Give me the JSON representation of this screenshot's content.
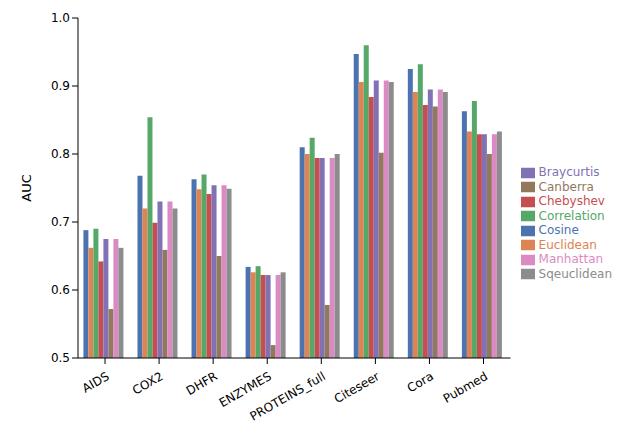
{
  "chart_data": {
    "type": "bar",
    "y_label": "AUC",
    "categories": [
      "AIDS",
      "COX2",
      "DHFR",
      "ENZYMES",
      "PROTEINS_full",
      "Citeseer",
      "Cora",
      "Pubmed"
    ],
    "series": [
      {
        "name": "Cosine",
        "color": "#4c72b0",
        "values": [
          0.688,
          0.768,
          0.763,
          0.634,
          0.81,
          0.947,
          0.925,
          0.863
        ]
      },
      {
        "name": "Euclidean",
        "color": "#dd8452",
        "values": [
          0.662,
          0.72,
          0.748,
          0.626,
          0.8,
          0.906,
          0.891,
          0.833
        ]
      },
      {
        "name": "Correlation",
        "color": "#55a868",
        "values": [
          0.69,
          0.854,
          0.77,
          0.635,
          0.824,
          0.96,
          0.932,
          0.878
        ]
      },
      {
        "name": "Chebyshev",
        "color": "#c44e52",
        "values": [
          0.642,
          0.699,
          0.741,
          0.622,
          0.794,
          0.884,
          0.872,
          0.829
        ]
      },
      {
        "name": "Braycurtis",
        "color": "#8172b3",
        "values": [
          0.675,
          0.73,
          0.754,
          0.622,
          0.794,
          0.908,
          0.895,
          0.829
        ]
      },
      {
        "name": "Canberra",
        "color": "#937860",
        "values": [
          0.572,
          0.659,
          0.65,
          0.519,
          0.578,
          0.802,
          0.87,
          0.8
        ]
      },
      {
        "name": "Manhattan",
        "color": "#da8bc3",
        "values": [
          0.675,
          0.73,
          0.754,
          0.622,
          0.794,
          0.908,
          0.895,
          0.829
        ]
      },
      {
        "name": "Sqeuclidean",
        "color": "#8c8c8c",
        "values": [
          0.662,
          0.72,
          0.749,
          0.626,
          0.8,
          0.906,
          0.891,
          0.833
        ]
      }
    ],
    "ylim": [
      0.5,
      1
    ],
    "yticks": [
      0.5,
      0.6,
      0.7,
      0.8,
      0.9,
      {
        "value": 1,
        "label": "1.0"
      }
    ],
    "grid": false,
    "legend": "right"
  }
}
